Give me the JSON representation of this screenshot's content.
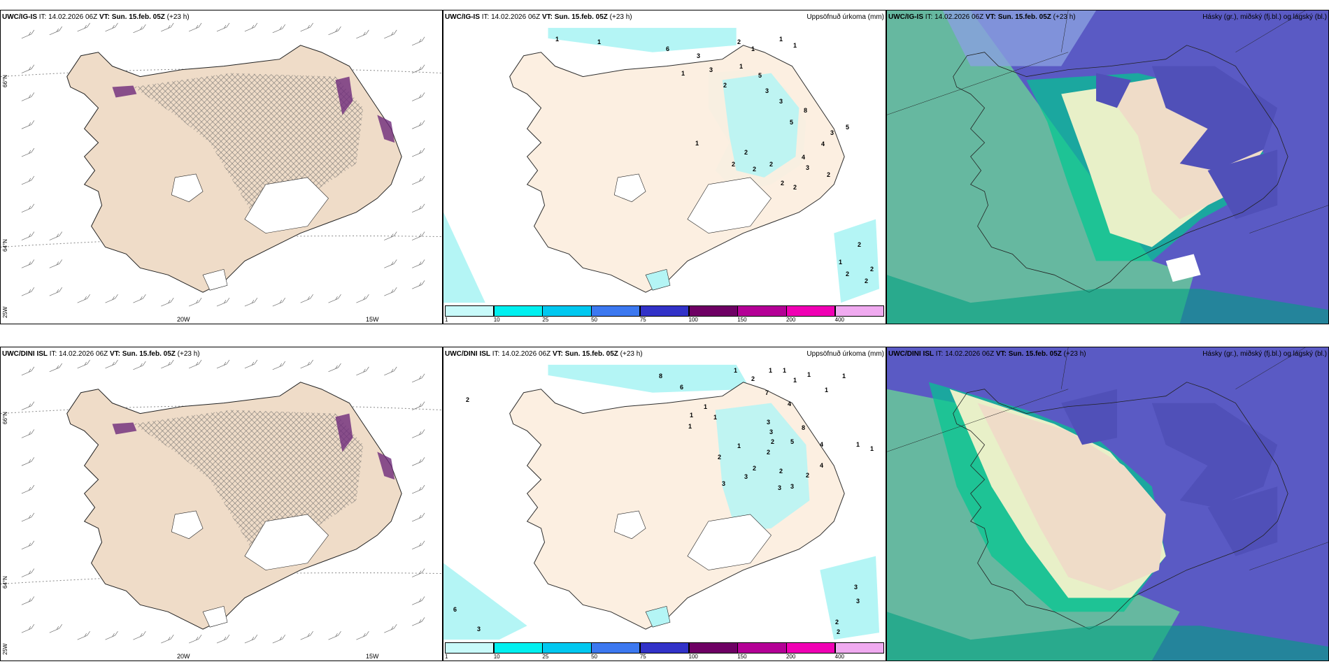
{
  "rows": [
    {
      "model": "UWC/IG-IS",
      "it_label": "IT:",
      "it": "14.02.2026 06Z",
      "vt_label": "VT:",
      "vt": "Sun. 15.feb. 05Z",
      "lead": "(+23 h)"
    },
    {
      "model": "UWC/DINI ISL",
      "it_label": "IT:",
      "it": "14.02.2026 06Z",
      "vt_label": "VT:",
      "vt": "Sun. 15.feb. 05Z",
      "lead": "(+23 h)"
    }
  ],
  "precip_title": "Uppsöfnuð úrkoma (mm)",
  "cloud_title": "Hásky (gr.), miðský (fj.bl.) og lágský (bl.)",
  "axis": {
    "lat66": "66°N",
    "lat64": "64°N",
    "lon20": "20W",
    "lon15": "15W",
    "lon25": "25W"
  },
  "colorbar": {
    "ticks": [
      "1",
      "10",
      "25",
      "50",
      "75",
      "100",
      "150",
      "200",
      "400"
    ],
    "colors": [
      "#c8fafa",
      "#00f0f0",
      "#00c8f0",
      "#3c78f0",
      "#3232c8",
      "#6e0064",
      "#b40096",
      "#f000b4",
      "#f0aaf0"
    ]
  },
  "precip_numbers_top": [
    "1",
    "1",
    "6",
    "3",
    "3",
    "1",
    "2",
    "1",
    "1",
    "1",
    "5",
    "1",
    "2",
    "3",
    "3",
    "8",
    "5",
    "3",
    "4",
    "5",
    "1",
    "2",
    "2",
    "2",
    "4",
    "3",
    "2",
    "2",
    "2",
    "2",
    "2",
    "1",
    "2",
    "2",
    "2"
  ],
  "precip_numbers_bottom": [
    "8",
    "6",
    "1",
    "2",
    "1",
    "1",
    "7",
    "1",
    "1",
    "1",
    "2",
    "1",
    "1",
    "1",
    "4",
    "1",
    "1",
    "3",
    "8",
    "3",
    "5",
    "2",
    "2",
    "2",
    "1",
    "4",
    "1",
    "3",
    "2",
    "2",
    "3",
    "3",
    "3",
    "1",
    "4",
    "2",
    "3",
    "3",
    "2",
    "2",
    "6",
    "3"
  ],
  "colors": {
    "land": "#efdcc8",
    "cloud_low": "#66b8a0",
    "cloud_mid": "#8aa0e0",
    "cloud_high": "#5050b8",
    "cloud_green": "#00c890",
    "precip_light": "#b4f5f5"
  }
}
